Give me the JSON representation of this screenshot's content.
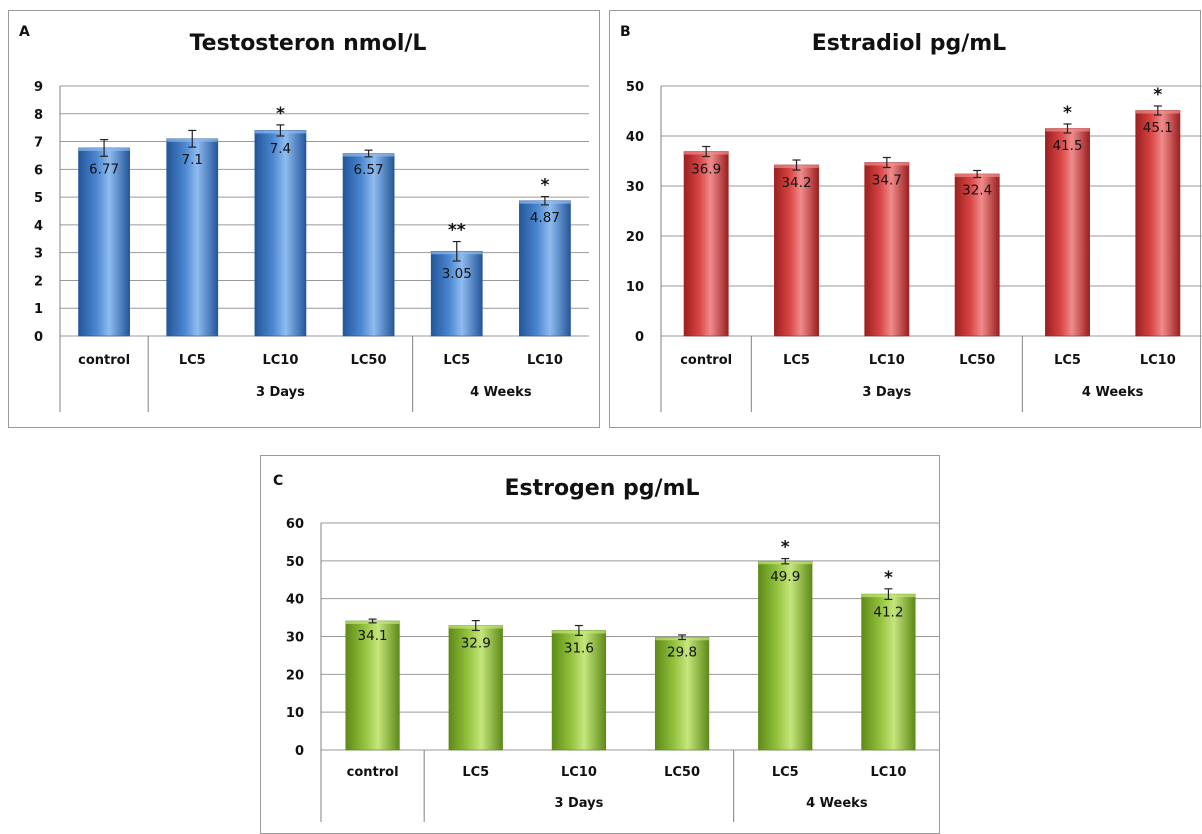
{
  "chart_data": [
    {
      "type": "bar",
      "panel_label": "A",
      "title": "Testosteron nmol/L",
      "categories": [
        "control",
        "LC5",
        "LC10",
        "LC50",
        "LC5",
        "LC10"
      ],
      "groups": [
        {
          "label": "3 Days",
          "categories": [
            "LC5",
            "LC10",
            "LC50"
          ]
        },
        {
          "label": "4 Weeks",
          "categories": [
            "LC5",
            "LC10"
          ]
        }
      ],
      "values": [
        6.77,
        7.1,
        7.4,
        6.57,
        3.05,
        4.87
      ],
      "value_labels": [
        "6.77",
        "7.1",
        "7.4",
        "6.57",
        "3.05",
        "4.87"
      ],
      "error": [
        0.3,
        0.3,
        0.2,
        0.12,
        0.35,
        0.15
      ],
      "significance": [
        "",
        "",
        "*",
        "",
        "**",
        "*"
      ],
      "ylim": [
        0,
        9
      ],
      "yticks": [
        "0",
        "1",
        "2",
        "3",
        "4",
        "5",
        "6",
        "7",
        "8",
        "9"
      ],
      "grid": true,
      "colors": {
        "bar": "#4a86cf",
        "bar_dark": "#23569a",
        "bar_light": "#8fbcf0"
      }
    },
    {
      "type": "bar",
      "panel_label": "B",
      "title": "Estradiol pg/mL",
      "categories": [
        "control",
        "LC5",
        "LC10",
        "LC50",
        "LC5",
        "LC10"
      ],
      "groups": [
        {
          "label": "3 Days",
          "categories": [
            "LC5",
            "LC10",
            "LC50"
          ]
        },
        {
          "label": "4 Weeks",
          "categories": [
            "LC5",
            "LC10"
          ]
        }
      ],
      "values": [
        36.9,
        34.2,
        34.7,
        32.4,
        41.5,
        45.1
      ],
      "value_labels": [
        "36.9",
        "34.2",
        "34.7",
        "32.4",
        "41.5",
        "45.1"
      ],
      "error": [
        1.0,
        1.0,
        1.0,
        0.7,
        0.9,
        0.9
      ],
      "significance": [
        "",
        "",
        "",
        "",
        "*",
        "*"
      ],
      "ylim": [
        0,
        50
      ],
      "yticks": [
        "0",
        "10",
        "20",
        "30",
        "40",
        "50"
      ],
      "grid": true,
      "colors": {
        "bar": "#d94545",
        "bar_dark": "#9c1f1f",
        "bar_light": "#f08c8c"
      }
    },
    {
      "type": "bar",
      "panel_label": "C",
      "title": "Estrogen pg/mL",
      "categories": [
        "control",
        "LC5",
        "LC10",
        "LC50",
        "LC5",
        "LC10"
      ],
      "groups": [
        {
          "label": "3 Days",
          "categories": [
            "LC5",
            "LC10",
            "LC50"
          ]
        },
        {
          "label": "4 Weeks",
          "categories": [
            "LC5",
            "LC10"
          ]
        }
      ],
      "values": [
        34.1,
        32.9,
        31.6,
        29.8,
        49.9,
        41.2
      ],
      "value_labels": [
        "34.1",
        "32.9",
        "31.6",
        "29.8",
        "49.9",
        "41.2"
      ],
      "error": [
        0.5,
        1.3,
        1.3,
        0.6,
        0.7,
        1.4
      ],
      "significance": [
        "",
        "",
        "",
        "",
        "*",
        "*"
      ],
      "ylim": [
        0,
        60
      ],
      "yticks": [
        "0",
        "10",
        "20",
        "30",
        "40",
        "50",
        "60"
      ],
      "grid": true,
      "colors": {
        "bar": "#93c23d",
        "bar_dark": "#5e8a18",
        "bar_light": "#c5e67c"
      }
    }
  ]
}
